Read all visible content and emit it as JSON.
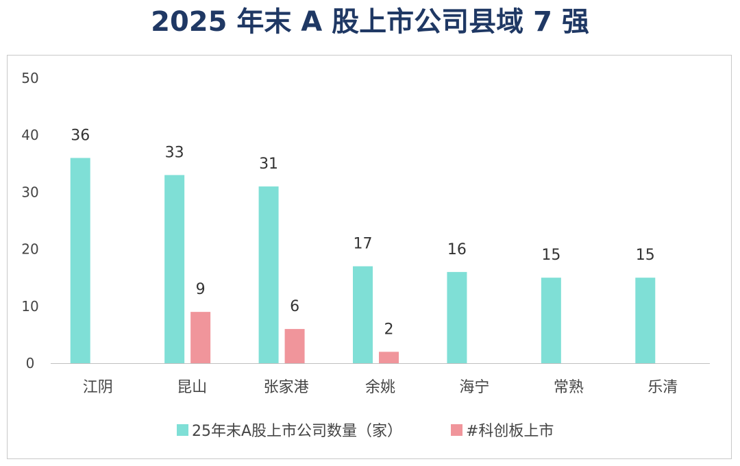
{
  "title": "2025 年末 A 股上市公司县域 7 强",
  "chart_data": {
    "type": "bar",
    "title": "2025 年末 A 股上市公司县域 7 强",
    "categories": [
      "江阴",
      "昆山",
      "张家港",
      "余姚",
      "海宁",
      "常熟",
      "乐清"
    ],
    "series": [
      {
        "name": "25年末A股上市公司数量（家）",
        "values": [
          36,
          33,
          31,
          17,
          16,
          15,
          15
        ],
        "color": "#7fdfd6"
      },
      {
        "name": "#科创板上市",
        "values": [
          null,
          9,
          6,
          2,
          null,
          null,
          null
        ],
        "color": "#f0959b"
      }
    ],
    "yticks": [
      0,
      10,
      20,
      30,
      40,
      50
    ],
    "ylim": [
      0,
      50
    ],
    "xlabel": "",
    "ylabel": "",
    "legend_position": "bottom",
    "grid": false
  }
}
